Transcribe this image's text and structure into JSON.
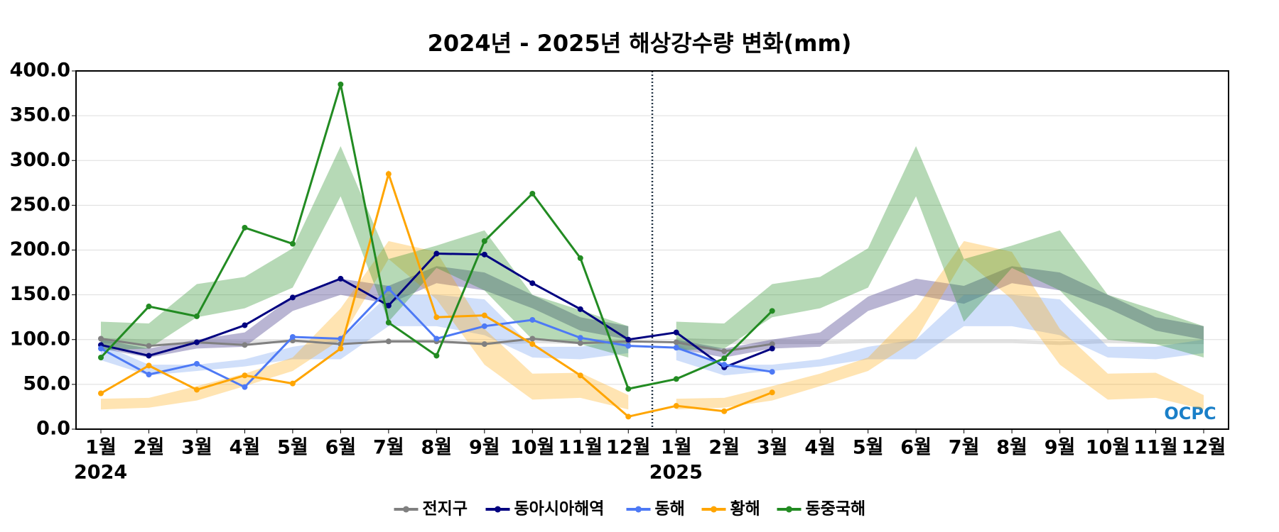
{
  "chart_data": {
    "type": "line",
    "title": "2024년 - 2025년 해상강수량 변화(mm)",
    "categories": [
      "1월",
      "2월",
      "3월",
      "4월",
      "5월",
      "6월",
      "7월",
      "8월",
      "9월",
      "10월",
      "11월",
      "12월",
      "1월",
      "2월",
      "3월",
      "4월",
      "5월",
      "6월",
      "7월",
      "8월",
      "9월",
      "10월",
      "11월",
      "12월"
    ],
    "years": [
      "2024",
      "2025"
    ],
    "ylim": [
      0,
      400
    ],
    "yticks": [
      {
        "value": 0,
        "label": "0.0"
      },
      {
        "value": 50,
        "label": "50.0"
      },
      {
        "value": 100,
        "label": "100.0"
      },
      {
        "value": 150,
        "label": "150.0"
      },
      {
        "value": 200,
        "label": "200.0"
      },
      {
        "value": 250,
        "label": "250.0"
      },
      {
        "value": 300,
        "label": "300.0"
      },
      {
        "value": 350,
        "label": "350.0"
      },
      {
        "value": 400,
        "label": "400.0"
      }
    ],
    "grid": true,
    "legend": "bottom",
    "logo": "OCPC",
    "bands": [
      {
        "color": "rgba(200,200,200,0.55)",
        "low": [
          96,
          95,
          95,
          95,
          96,
          96,
          96,
          96,
          94,
          96,
          95,
          95
        ],
        "high": [
          102,
          100,
          100,
          99,
          100,
          100,
          100,
          100,
          98,
          100,
          100,
          100
        ]
      },
      {
        "color": "rgba(72,61,139,0.38)",
        "low": [
          90,
          80,
          90,
          92,
          132,
          150,
          140,
          163,
          155,
          135,
          110,
          100
        ],
        "high": [
          100,
          90,
          100,
          108,
          148,
          168,
          160,
          182,
          175,
          150,
          125,
          115
        ]
      },
      {
        "color": "rgba(100,149,237,0.3)",
        "low": [
          77,
          60,
          65,
          70,
          78,
          78,
          115,
          115,
          105,
          80,
          78,
          85
        ],
        "high": [
          95,
          72,
          72,
          78,
          92,
          100,
          150,
          150,
          145,
          92,
          92,
          100
        ]
      },
      {
        "color": "rgba(255,165,0,0.3)",
        "low": [
          22,
          24,
          32,
          48,
          65,
          100,
          190,
          145,
          72,
          33,
          35,
          22
        ],
        "high": [
          34,
          35,
          48,
          62,
          80,
          135,
          210,
          198,
          112,
          62,
          63,
          38
        ]
      },
      {
        "color": "rgba(34,139,34,0.33)",
        "low": [
          88,
          90,
          125,
          135,
          158,
          260,
          120,
          180,
          155,
          100,
          95,
          80
        ],
        "high": [
          120,
          118,
          162,
          170,
          202,
          316,
          190,
          205,
          222,
          150,
          133,
          115
        ]
      }
    ],
    "series": [
      {
        "name": "전지구",
        "color": "#808080",
        "values": [
          101,
          93,
          97,
          94,
          99,
          95,
          98,
          98,
          95,
          101,
          96,
          98,
          97,
          87,
          95,
          null,
          null,
          null,
          null,
          null,
          null,
          null,
          null,
          null
        ]
      },
      {
        "name": "동아시아해역",
        "color": "#000080",
        "values": [
          94,
          82,
          97,
          116,
          147,
          168,
          138,
          196,
          195,
          163,
          134,
          100,
          108,
          69,
          90,
          null,
          null,
          null,
          null,
          null,
          null,
          null,
          null,
          null
        ]
      },
      {
        "name": "동해",
        "color": "#4d79f5",
        "values": [
          90,
          61,
          73,
          47,
          103,
          101,
          157,
          101,
          115,
          122,
          102,
          93,
          91,
          72,
          64,
          null,
          null,
          null,
          null,
          null,
          null,
          null,
          null,
          null
        ]
      },
      {
        "name": "황해",
        "color": "#ffa500",
        "values": [
          40,
          71,
          44,
          60,
          51,
          90,
          285,
          125,
          127,
          95,
          60,
          14,
          26,
          20,
          41,
          null,
          null,
          null,
          null,
          null,
          null,
          null,
          null,
          null
        ]
      },
      {
        "name": "동중국해",
        "color": "#228b22",
        "values": [
          80,
          137,
          126,
          225,
          207,
          385,
          119,
          82,
          210,
          263,
          191,
          45,
          56,
          79,
          132,
          null,
          null,
          null,
          null,
          null,
          null,
          null,
          null,
          null
        ]
      }
    ]
  }
}
